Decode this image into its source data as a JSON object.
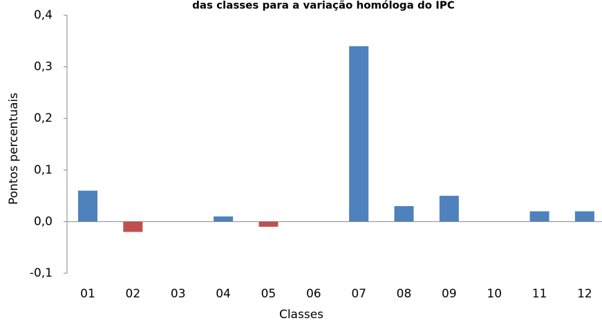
{
  "chart_data": {
    "type": "bar",
    "title": "das classes para a variação homóloga do IPC",
    "x_label": "Classes",
    "y_label": "Pontos percentuais",
    "categories": [
      "01",
      "02",
      "03",
      "04",
      "05",
      "06",
      "07",
      "08",
      "09",
      "10",
      "11",
      "12"
    ],
    "values": [
      0.06,
      -0.02,
      0,
      0.01,
      -0.01,
      0,
      0.34,
      0.03,
      0.05,
      0,
      0.02,
      0.02
    ],
    "color": "#4f81bd",
    "negative_color": "#c0504d",
    "ylim": [
      -0.1,
      0.4
    ],
    "yticks": [
      {
        "value": -0.1,
        "label": "-0,1"
      },
      {
        "value": 0,
        "label": "0,0"
      },
      {
        "value": 0.1,
        "label": "0,1"
      },
      {
        "value": 0.2,
        "label": "0,2"
      },
      {
        "value": 0.3,
        "label": "0,3"
      },
      {
        "value": 0.4,
        "label": "0,4"
      }
    ],
    "grid": false
  }
}
